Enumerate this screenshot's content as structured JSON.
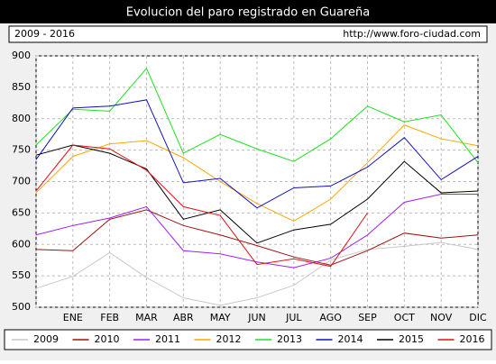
{
  "chart_data": {
    "type": "line",
    "title": "Evolucion del paro registrado en Guareña",
    "subtitle": "2009 - 2016",
    "source": "http://www.foro-ciudad.com",
    "categories": [
      null,
      "ENE",
      "FEB",
      "MAR",
      "ABR",
      "MAY",
      "JUN",
      "JUL",
      "AGO",
      "SEP",
      "OCT",
      "NOV",
      "DIC"
    ],
    "ylim": [
      500,
      900
    ],
    "yticks": [
      500,
      550,
      600,
      650,
      700,
      750,
      800,
      850,
      900
    ],
    "grid": true,
    "legend": "bottom",
    "series": [
      {
        "name": "2009",
        "color": "#c8c8c8",
        "values": [
          530,
          549,
          587,
          547,
          515,
          503,
          515,
          535,
          575,
          592,
          597,
          603,
          592
        ]
      },
      {
        "name": "2010",
        "color": "#a01010",
        "values": [
          592,
          590,
          640,
          655,
          630,
          615,
          598,
          580,
          567,
          590,
          618,
          610,
          615
        ]
      },
      {
        "name": "2011",
        "color": "#a020f0",
        "values": [
          615,
          630,
          642,
          660,
          590,
          585,
          572,
          563,
          578,
          615,
          667,
          680,
          680
        ]
      },
      {
        "name": "2012",
        "color": "#ffa500",
        "values": [
          682,
          740,
          760,
          765,
          738,
          700,
          665,
          637,
          672,
          730,
          790,
          768,
          757
        ]
      },
      {
        "name": "2013",
        "color": "#20e020",
        "values": [
          758,
          815,
          812,
          880,
          745,
          775,
          752,
          732,
          768,
          820,
          795,
          806,
          730
        ]
      },
      {
        "name": "2014",
        "color": "#1010c0",
        "values": [
          735,
          817,
          820,
          830,
          698,
          705,
          658,
          690,
          693,
          723,
          770,
          703,
          740
        ]
      },
      {
        "name": "2015",
        "color": "#000000",
        "values": [
          742,
          758,
          745,
          720,
          640,
          655,
          602,
          623,
          632,
          672,
          732,
          682,
          685
        ]
      },
      {
        "name": "2016",
        "color": "#e01010",
        "values": [
          685,
          758,
          752,
          718,
          660,
          646,
          568,
          577,
          565,
          650,
          null,
          null,
          null
        ]
      }
    ]
  }
}
